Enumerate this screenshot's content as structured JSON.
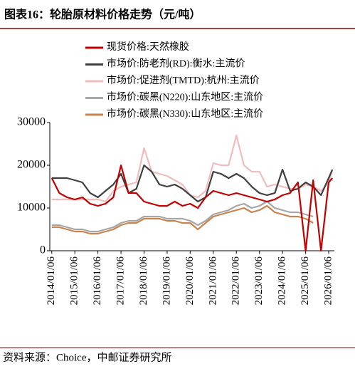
{
  "chart_data": {
    "type": "line",
    "title": "图表16：轮胎原材料价格走势（元/吨）",
    "source": "资料来源：Choice，中邮证券研究所",
    "x": [
      "2014/01/06",
      "2014/05/06",
      "2014/09/06",
      "2015/01/06",
      "2015/05/06",
      "2015/09/06",
      "2016/01/06",
      "2016/05/06",
      "2016/09/06",
      "2017/01/06",
      "2017/05/06",
      "2017/09/06",
      "2018/01/06",
      "2018/05/06",
      "2018/09/06",
      "2019/01/06",
      "2019/05/06",
      "2019/09/06",
      "2020/01/06",
      "2020/05/06",
      "2020/09/06",
      "2021/01/06",
      "2021/05/06",
      "2021/09/06",
      "2022/01/06",
      "2022/05/06",
      "2022/09/06",
      "2023/01/06",
      "2023/05/06",
      "2023/09/06",
      "2024/01/06",
      "2024/05/06",
      "2024/09/06",
      "2025/01/06",
      "2025/05/06",
      "2025/09/06",
      "2026/01/06",
      "2026/03/06"
    ],
    "series": [
      {
        "name": "现货价格:天然橡胶",
        "color": "#c00000",
        "values": [
          17000,
          13500,
          12500,
          12000,
          12500,
          11000,
          10500,
          11000,
          12500,
          20000,
          13500,
          13500,
          11500,
          11000,
          10500,
          10500,
          11500,
          10500,
          11000,
          10000,
          12500,
          14000,
          13500,
          13000,
          13500,
          13000,
          12500,
          12000,
          11500,
          12000,
          13000,
          13500,
          16000,
          0,
          16500,
          0,
          16000,
          17000
        ]
      },
      {
        "name": "市场价:防老剂(RD):衡水:主流价",
        "color": "#404040",
        "values": [
          17000,
          17000,
          17000,
          16500,
          16000,
          13500,
          12500,
          14000,
          15500,
          18000,
          13500,
          14500,
          20000,
          18500,
          15500,
          15000,
          15500,
          14500,
          13000,
          11500,
          12500,
          18500,
          18000,
          17000,
          18000,
          17000,
          15000,
          13500,
          13000,
          13500,
          19000,
          14000,
          14500,
          16000,
          15000,
          13000,
          17000,
          19000
        ]
      },
      {
        "name": "市场价:促进剂(TMTD):杭州:主流价",
        "color": "#f0bcbc",
        "values": [
          12000,
          12000,
          12000,
          12000,
          12000,
          12000,
          12000,
          11500,
          14000,
          15000,
          15500,
          16000,
          24000,
          18500,
          18000,
          17500,
          16500,
          15500,
          13000,
          12500,
          14000,
          20500,
          20000,
          20000,
          27000,
          20000,
          18500,
          18500,
          15000,
          15500,
          15000,
          14500,
          14500,
          15500,
          15000,
          14000,
          16000,
          19000
        ]
      },
      {
        "name": "市场价:碳黑(N220):山东地区:主流价",
        "color": "#a6a6a6",
        "values": [
          6000,
          6000,
          5500,
          5000,
          5000,
          4500,
          4500,
          5000,
          5500,
          6500,
          7000,
          7000,
          8000,
          8000,
          8000,
          7500,
          7500,
          7500,
          7000,
          6000,
          7000,
          8500,
          9000,
          9500,
          10500,
          11000,
          10000,
          10500,
          11500,
          10000,
          9500,
          9000,
          9000,
          8500,
          8000,
          null,
          null,
          null
        ]
      },
      {
        "name": "市场价:碳黑(N330):山东地区:主流价",
        "color": "#c9834f",
        "values": [
          5500,
          5500,
          5000,
          4500,
          4500,
          4000,
          4000,
          4500,
          5000,
          6000,
          6500,
          6500,
          7500,
          7500,
          7500,
          7000,
          7000,
          6500,
          6500,
          5000,
          6500,
          8000,
          8500,
          9000,
          9500,
          10000,
          9000,
          9500,
          10500,
          9000,
          8500,
          8000,
          8000,
          7500,
          6500,
          null,
          null,
          null
        ]
      }
    ],
    "xlim": [
      "2013/12/06",
      "2026/04/06"
    ],
    "xticks": [
      "2014/01/06",
      "2015/01/06",
      "2016/01/06",
      "2017/01/06",
      "2018/01/06",
      "2019/01/06",
      "2020/01/06",
      "2021/01/06",
      "2022/01/06",
      "2023/01/06",
      "2024/01/06",
      "2025/01/06",
      "2026/01/06"
    ],
    "ylim": [
      0,
      30000
    ],
    "yticks": [
      0,
      10000,
      20000,
      30000
    ],
    "grid": false,
    "legend": "top"
  }
}
